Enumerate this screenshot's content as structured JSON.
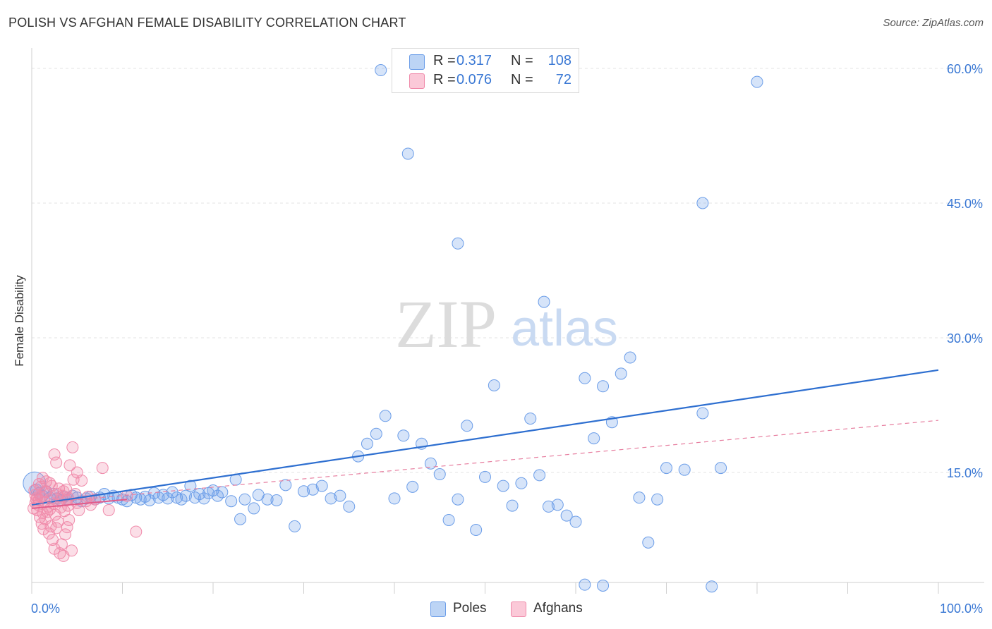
{
  "title": "POLISH VS AFGHAN FEMALE DISABILITY CORRELATION CHART",
  "source": "Source: ZipAtlas.com",
  "watermark": {
    "zip": "ZIP",
    "atlas": "atlas"
  },
  "stats": [
    {
      "label": "R =",
      "r": "0.317",
      "n_label": "N =",
      "n": "108",
      "color": "#6b9de8"
    },
    {
      "label": "R =",
      "r": "0.076",
      "n_label": "N =",
      "n": "72",
      "color": "#f08aaa"
    }
  ],
  "legend": [
    {
      "name": "Poles",
      "color": "#6b9de8"
    },
    {
      "name": "Afghans",
      "color": "#f08aaa"
    }
  ],
  "chart_data": {
    "type": "scatter",
    "title": "POLISH VS AFGHAN FEMALE DISABILITY CORRELATION CHART",
    "xlabel": "",
    "ylabel": "Female Disability",
    "xlim": [
      0,
      100
    ],
    "ylim": [
      0,
      62
    ],
    "x_tick_labels": [
      "0.0%",
      "100.0%"
    ],
    "y_ticks": [
      15,
      30,
      45,
      60
    ],
    "y_tick_labels": [
      "15.0%",
      "30.0%",
      "45.0%",
      "60.0%"
    ],
    "grid": true,
    "legend_position": "bottom-center",
    "series": [
      {
        "name": "Poles",
        "color": "#6b9de8",
        "trend": {
          "x": [
            0,
            100
          ],
          "y": [
            11.4,
            26.4
          ],
          "style": "solid"
        },
        "points": [
          [
            0.3,
            13.8
          ],
          [
            0.5,
            13.1
          ],
          [
            0.8,
            12.7
          ],
          [
            1.2,
            12.4
          ],
          [
            1.6,
            12.9
          ],
          [
            2.0,
            12.2
          ],
          [
            2.4,
            12.6
          ],
          [
            2.8,
            12.1
          ],
          [
            3.2,
            11.9
          ],
          [
            3.6,
            12.3
          ],
          [
            4.0,
            12.0
          ],
          [
            4.5,
            12.4
          ],
          [
            5.0,
            12.2
          ],
          [
            5.5,
            11.8
          ],
          [
            6.0,
            12.1
          ],
          [
            6.5,
            12.3
          ],
          [
            7.0,
            12.0
          ],
          [
            7.5,
            12.2
          ],
          [
            8.0,
            12.6
          ],
          [
            8.5,
            12.1
          ],
          [
            9.0,
            12.4
          ],
          [
            9.5,
            12.2
          ],
          [
            10.0,
            12.0
          ],
          [
            10.5,
            11.8
          ],
          [
            11.0,
            12.5
          ],
          [
            11.5,
            12.2
          ],
          [
            12.0,
            12.0
          ],
          [
            12.5,
            12.3
          ],
          [
            13.0,
            11.9
          ],
          [
            13.5,
            12.7
          ],
          [
            14.0,
            12.2
          ],
          [
            14.5,
            12.5
          ],
          [
            15.0,
            12.1
          ],
          [
            15.5,
            12.8
          ],
          [
            16.0,
            12.2
          ],
          [
            16.5,
            12.0
          ],
          [
            17.0,
            12.4
          ],
          [
            17.5,
            13.5
          ],
          [
            18.0,
            12.2
          ],
          [
            18.5,
            12.6
          ],
          [
            19.0,
            12.1
          ],
          [
            19.5,
            12.7
          ],
          [
            20.0,
            13.0
          ],
          [
            20.5,
            12.4
          ],
          [
            21.0,
            12.8
          ],
          [
            22.0,
            11.8
          ],
          [
            22.5,
            14.2
          ],
          [
            23.0,
            9.8
          ],
          [
            23.5,
            12.0
          ],
          [
            24.5,
            11.0
          ],
          [
            25.0,
            12.5
          ],
          [
            26.0,
            12.0
          ],
          [
            27.0,
            11.9
          ],
          [
            28.0,
            13.6
          ],
          [
            29.0,
            9.0
          ],
          [
            30.0,
            12.9
          ],
          [
            31.0,
            13.1
          ],
          [
            32.0,
            13.5
          ],
          [
            33.0,
            12.1
          ],
          [
            34.0,
            12.4
          ],
          [
            35.0,
            11.2
          ],
          [
            36.0,
            16.8
          ],
          [
            37.0,
            18.2
          ],
          [
            38.0,
            19.3
          ],
          [
            39.0,
            21.3
          ],
          [
            40.0,
            12.1
          ],
          [
            41.0,
            19.1
          ],
          [
            42.0,
            13.4
          ],
          [
            43.0,
            18.2
          ],
          [
            44.0,
            16.0
          ],
          [
            45.0,
            14.8
          ],
          [
            46.0,
            9.7
          ],
          [
            47.0,
            12.0
          ],
          [
            48.0,
            20.2
          ],
          [
            49.0,
            8.6
          ],
          [
            50.0,
            14.5
          ],
          [
            51.0,
            24.7
          ],
          [
            52.0,
            13.5
          ],
          [
            53.0,
            11.3
          ],
          [
            54.0,
            13.8
          ],
          [
            55.0,
            21.0
          ],
          [
            56.0,
            14.7
          ],
          [
            57.0,
            11.2
          ],
          [
            58.0,
            11.4
          ],
          [
            59.0,
            10.2
          ],
          [
            60.0,
            9.5
          ],
          [
            61.0,
            25.5
          ],
          [
            62.0,
            18.8
          ],
          [
            63.0,
            24.6
          ],
          [
            64.0,
            20.6
          ],
          [
            65.0,
            26.0
          ],
          [
            66.0,
            27.8
          ],
          [
            67.0,
            12.2
          ],
          [
            68.0,
            7.2
          ],
          [
            69.0,
            12.0
          ],
          [
            70.0,
            15.5
          ],
          [
            72.0,
            15.3
          ],
          [
            74.0,
            21.6
          ],
          [
            76.0,
            15.5
          ],
          [
            38.5,
            59.8
          ],
          [
            41.5,
            50.5
          ],
          [
            47.0,
            40.5
          ],
          [
            56.5,
            34.0
          ],
          [
            74.0,
            45.0
          ],
          [
            80.0,
            58.5
          ],
          [
            61.0,
            2.5
          ],
          [
            63.0,
            2.4
          ],
          [
            75.0,
            2.3
          ]
        ]
      },
      {
        "name": "Afghans",
        "color": "#f08aaa",
        "trend": {
          "x": [
            0,
            100
          ],
          "y": [
            11.5,
            20.8
          ],
          "style": "dashed"
        },
        "points": [
          [
            0.2,
            11.0
          ],
          [
            0.4,
            12.5
          ],
          [
            0.6,
            10.8
          ],
          [
            0.8,
            11.9
          ],
          [
            1.0,
            12.3
          ],
          [
            1.2,
            10.5
          ],
          [
            1.4,
            11.7
          ],
          [
            1.6,
            12.8
          ],
          [
            1.8,
            11.2
          ],
          [
            2.0,
            10.9
          ],
          [
            2.2,
            12.1
          ],
          [
            2.4,
            11.5
          ],
          [
            2.6,
            10.3
          ],
          [
            2.8,
            12.6
          ],
          [
            3.0,
            11.8
          ],
          [
            3.2,
            11.1
          ],
          [
            3.4,
            12.4
          ],
          [
            3.6,
            10.7
          ],
          [
            3.8,
            11.9
          ],
          [
            4.0,
            12.2
          ],
          [
            0.3,
            13.0
          ],
          [
            0.5,
            12.0
          ],
          [
            0.7,
            11.4
          ],
          [
            0.9,
            10.0
          ],
          [
            1.1,
            9.3
          ],
          [
            1.3,
            8.7
          ],
          [
            1.5,
            9.8
          ],
          [
            1.7,
            10.6
          ],
          [
            1.9,
            8.2
          ],
          [
            2.1,
            9.0
          ],
          [
            2.3,
            7.5
          ],
          [
            2.5,
            6.5
          ],
          [
            2.7,
            8.8
          ],
          [
            2.9,
            9.5
          ],
          [
            3.1,
            6.0
          ],
          [
            3.3,
            7.0
          ],
          [
            3.5,
            5.7
          ],
          [
            3.7,
            8.1
          ],
          [
            3.9,
            8.9
          ],
          [
            4.1,
            9.7
          ],
          [
            2.5,
            17.0
          ],
          [
            2.7,
            16.1
          ],
          [
            4.5,
            17.8
          ],
          [
            4.2,
            15.8
          ],
          [
            5.0,
            15.0
          ],
          [
            4.6,
            14.2
          ],
          [
            5.5,
            14.1
          ],
          [
            7.8,
            15.5
          ],
          [
            1.6,
            14.0
          ],
          [
            2.0,
            13.8
          ],
          [
            1.2,
            14.4
          ],
          [
            1.0,
            13.4
          ],
          [
            0.8,
            13.7
          ],
          [
            3.0,
            13.2
          ],
          [
            3.5,
            12.9
          ],
          [
            4.0,
            11.3
          ],
          [
            5.0,
            11.6
          ],
          [
            6.0,
            11.8
          ],
          [
            6.5,
            11.4
          ],
          [
            7.0,
            12.0
          ],
          [
            5.2,
            10.8
          ],
          [
            6.2,
            12.3
          ],
          [
            4.8,
            12.6
          ],
          [
            3.8,
            13.1
          ],
          [
            2.2,
            13.5
          ],
          [
            1.5,
            12.9
          ],
          [
            0.6,
            12.2
          ],
          [
            0.4,
            11.6
          ],
          [
            8.5,
            10.8
          ],
          [
            10.5,
            12.4
          ],
          [
            11.5,
            8.4
          ],
          [
            4.4,
            6.3
          ]
        ]
      }
    ]
  }
}
